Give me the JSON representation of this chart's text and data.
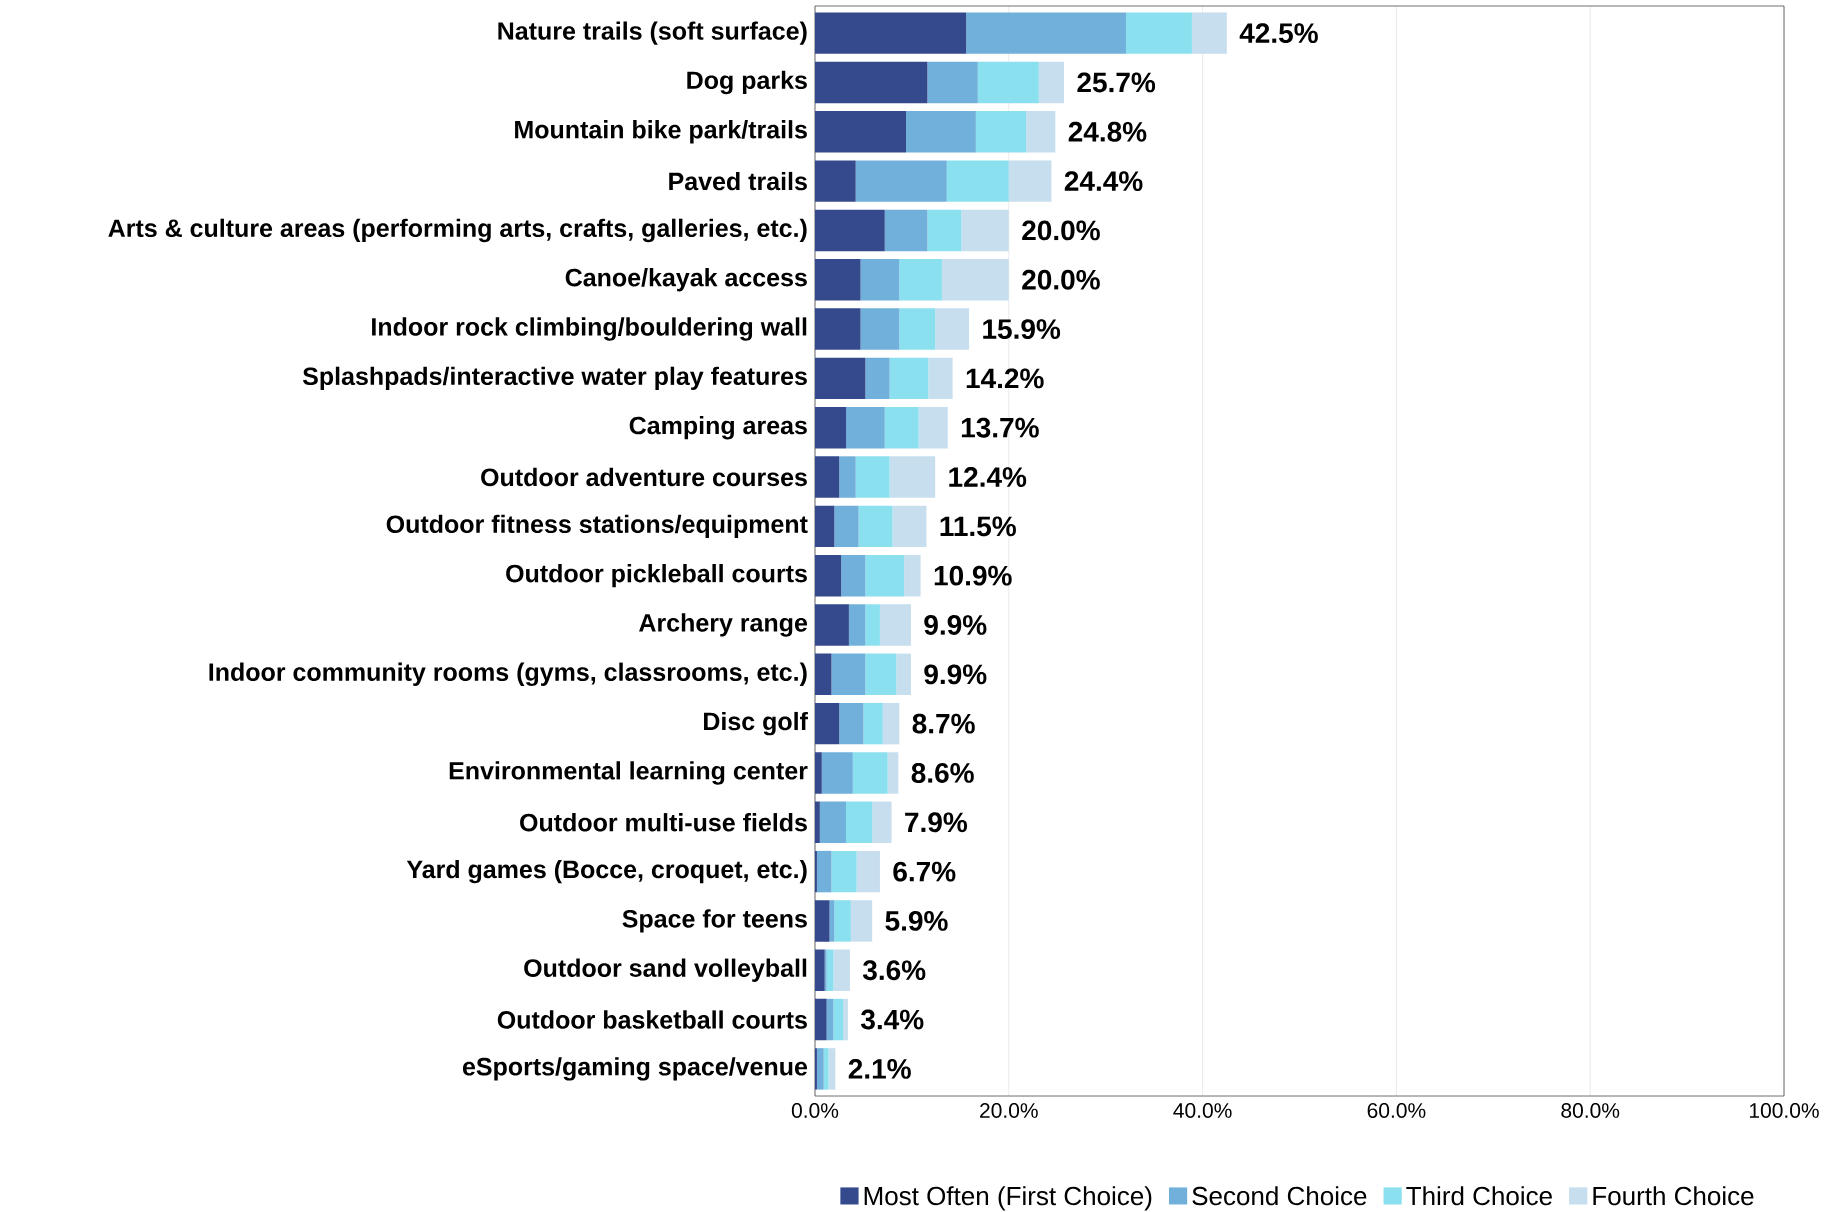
{
  "chart_data": {
    "type": "bar",
    "orientation": "horizontal",
    "stacked": true,
    "categories": [
      "Nature trails (soft surface)",
      "Dog parks",
      "Mountain bike park/trails",
      "Paved trails",
      "Arts & culture areas (performing arts, crafts, galleries, etc.)",
      "Canoe/kayak access",
      "Indoor rock climbing/bouldering wall",
      "Splashpads/interactive water play features",
      "Camping areas",
      "Outdoor adventure courses",
      "Outdoor fitness stations/equipment",
      "Outdoor pickleball courts",
      "Archery range",
      "Indoor community rooms (gyms, classrooms, etc.)",
      "Disc golf",
      "Environmental learning center",
      "Outdoor multi-use fields",
      "Yard games (Bocce, croquet, etc.)",
      "Space for teens",
      "Outdoor sand volleyball",
      "Outdoor basketball courts",
      "eSports/gaming space/venue"
    ],
    "series": [
      {
        "name": "Most Often (First Choice)",
        "color": "#344a8c",
        "values": [
          15.6,
          11.6,
          9.4,
          4.2,
          7.2,
          4.7,
          4.7,
          5.2,
          3.2,
          2.5,
          2.0,
          2.7,
          3.5,
          1.7,
          2.5,
          0.7,
          0.5,
          0.2,
          1.5,
          1.0,
          1.2,
          0.2
        ]
      },
      {
        "name": "Second Choice",
        "color": "#70b0da",
        "values": [
          16.5,
          5.2,
          7.2,
          9.4,
          4.4,
          4.0,
          4.0,
          2.5,
          4.0,
          1.7,
          2.5,
          2.5,
          1.7,
          3.5,
          2.5,
          3.2,
          2.7,
          1.5,
          0.5,
          0.2,
          0.7,
          0.7
        ]
      },
      {
        "name": "Third Choice",
        "color": "#8be0ef",
        "values": [
          6.8,
          6.3,
          5.2,
          6.4,
          3.5,
          4.4,
          3.7,
          4.0,
          3.5,
          3.5,
          3.5,
          4.0,
          1.5,
          3.2,
          2.0,
          3.6,
          2.7,
          2.6,
          1.7,
          0.7,
          1.0,
          0.5
        ]
      },
      {
        "name": "Fourth Choice",
        "color": "#c6deed",
        "values": [
          3.6,
          2.6,
          3.0,
          4.4,
          4.9,
          6.9,
          3.5,
          2.5,
          3.0,
          4.7,
          3.5,
          1.7,
          3.2,
          1.5,
          1.7,
          1.1,
          2.0,
          2.4,
          2.2,
          1.7,
          0.5,
          0.7
        ]
      }
    ],
    "totals": [
      "42.5%",
      "25.7%",
      "24.8%",
      "24.4%",
      "20.0%",
      "20.0%",
      "15.9%",
      "14.2%",
      "13.7%",
      "12.4%",
      "11.5%",
      "10.9%",
      "9.9%",
      "9.9%",
      "8.7%",
      "8.6%",
      "7.9%",
      "6.7%",
      "5.9%",
      "3.6%",
      "3.4%",
      "2.1%"
    ],
    "xlim": [
      0,
      100
    ],
    "xticks": [
      {
        "value": 0,
        "label": "0.0%"
      },
      {
        "value": 20,
        "label": "20.0%"
      },
      {
        "value": 40,
        "label": "40.0%"
      },
      {
        "value": 60,
        "label": "60.0%"
      },
      {
        "value": 80,
        "label": "80.0%"
      },
      {
        "value": 100,
        "label": "100.0%"
      }
    ],
    "grid": "x",
    "legend": "bottom"
  }
}
